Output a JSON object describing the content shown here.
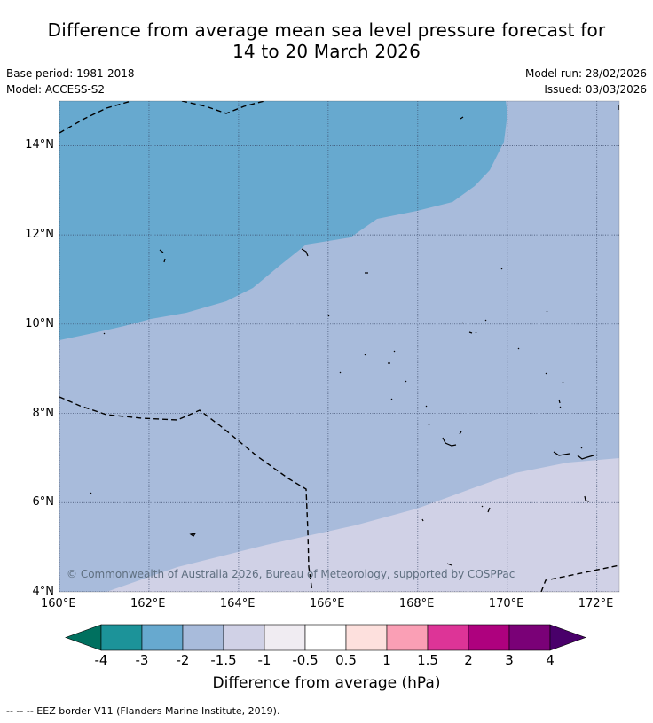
{
  "title": {
    "line1": "Difference from average mean sea level pressure forecast for",
    "line2": "14 to 20 March 2026"
  },
  "meta": {
    "base_period": "Base period: 1981-2018",
    "model": "Model: ACCESS-S2",
    "model_run": "Model run: 28/02/2026",
    "issued": "Issued: 03/03/2026"
  },
  "map": {
    "lon_range": [
      160,
      172.5
    ],
    "lat_range": [
      4,
      15
    ],
    "x_ticks": [
      "160°E",
      "162°E",
      "164°E",
      "166°E",
      "168°E",
      "170°E",
      "172°E"
    ],
    "y_ticks": [
      "4°N",
      "6°N",
      "8°N",
      "10°N",
      "12°N",
      "14°N"
    ],
    "regions": [
      {
        "value_range": "-2 to -1.5",
        "color": "#67a9cf"
      },
      {
        "value_range": "-1.5 to -1",
        "color": "#a8bbdb"
      },
      {
        "value_range": "-1 to -0.5",
        "color": "#d0d1e6"
      }
    ],
    "copyright": "© Commonwealth of Australia 2026, Bureau of Meteorology, supported by COSPPac"
  },
  "colorbar": {
    "title": "Difference from average (hPa)",
    "labels": [
      "-4",
      "-3",
      "-2",
      "-1.5",
      "-1",
      "-0.5",
      "0.5",
      "1",
      "1.5",
      "2",
      "3",
      "4"
    ],
    "colors": [
      "#00705f",
      "#1c9399",
      "#67a9cf",
      "#a8bbdb",
      "#d0d1e6",
      "#f0ecf2",
      "#ffffff",
      "#fde0dd",
      "#fa9fb5",
      "#dd3497",
      "#ae017e",
      "#7a0177",
      "#49006a"
    ]
  },
  "footnote": "--  --  -- EEZ border V11 (Flanders Marine Institute, 2019)."
}
